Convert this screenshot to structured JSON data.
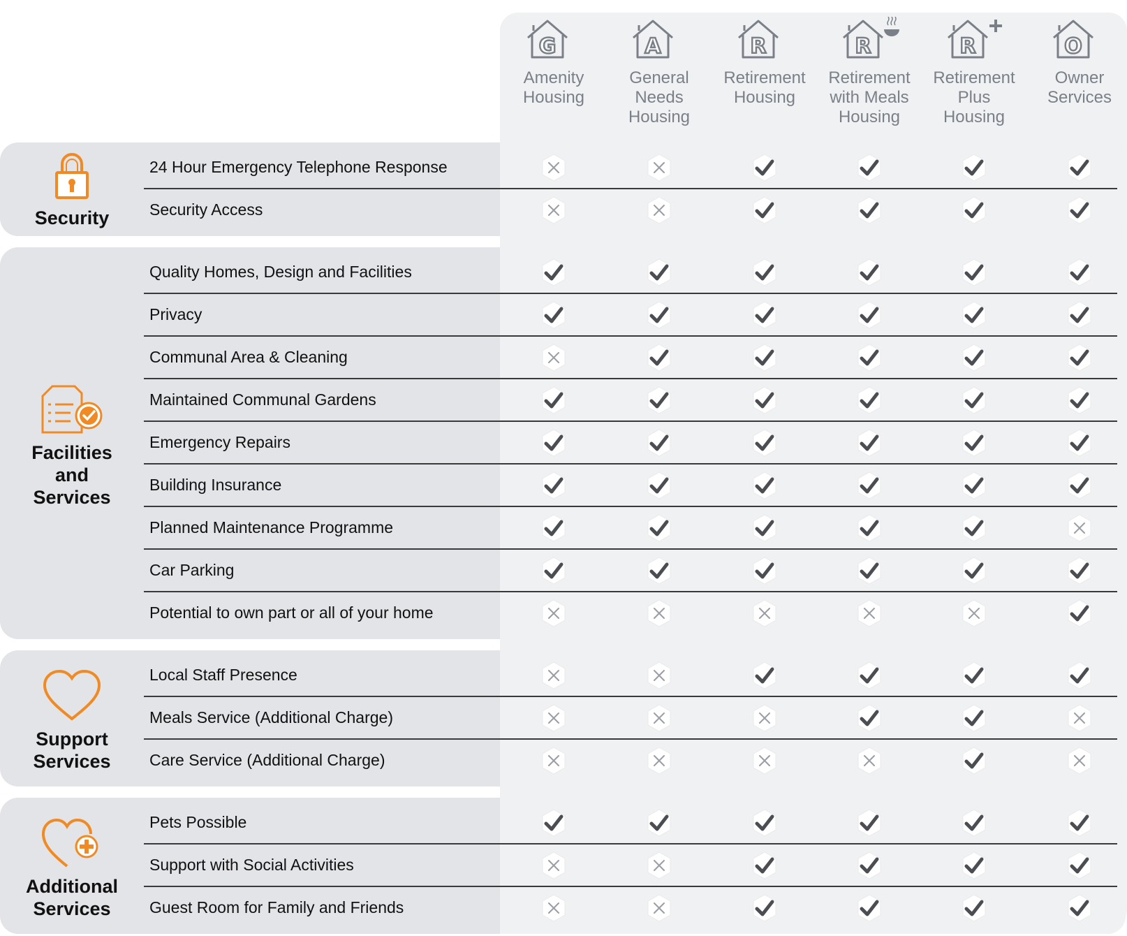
{
  "columns": [
    {
      "letter": "G",
      "label": "Amenity\nHousing",
      "extra": ""
    },
    {
      "letter": "A",
      "label": "General\nNeeds\nHousing",
      "extra": ""
    },
    {
      "letter": "R",
      "label": "Retirement\nHousing",
      "extra": ""
    },
    {
      "letter": "R",
      "label": "Retirement\nwith Meals\nHousing",
      "extra": "meal"
    },
    {
      "letter": "R",
      "label": "Retirement\nPlus\nHousing",
      "extra": "plus"
    },
    {
      "letter": "O",
      "label": "Owner\nServices",
      "extra": ""
    }
  ],
  "groups": [
    {
      "title": "Security",
      "icon": "padlock-icon",
      "rows": [
        {
          "feature": "24 Hour Emergency Telephone Response",
          "marks": [
            "x",
            "x",
            "check",
            "check",
            "check",
            "check"
          ]
        },
        {
          "feature": "Security Access",
          "marks": [
            "x",
            "x",
            "check",
            "check",
            "check",
            "check"
          ]
        }
      ]
    },
    {
      "title": "Facilities\nand\nServices",
      "icon": "document-check-icon",
      "rows": [
        {
          "feature": "Quality Homes, Design and Facilities",
          "marks": [
            "check",
            "check",
            "check",
            "check",
            "check",
            "check"
          ]
        },
        {
          "feature": "Privacy",
          "marks": [
            "check",
            "check",
            "check",
            "check",
            "check",
            "check"
          ]
        },
        {
          "feature": "Communal Area & Cleaning",
          "marks": [
            "x",
            "check",
            "check",
            "check",
            "check",
            "check"
          ]
        },
        {
          "feature": "Maintained Communal Gardens",
          "marks": [
            "check",
            "check",
            "check",
            "check",
            "check",
            "check"
          ]
        },
        {
          "feature": "Emergency Repairs",
          "marks": [
            "check",
            "check",
            "check",
            "check",
            "check",
            "check"
          ]
        },
        {
          "feature": "Building Insurance",
          "marks": [
            "check",
            "check",
            "check",
            "check",
            "check",
            "check"
          ]
        },
        {
          "feature": "Planned Maintenance Programme",
          "marks": [
            "check",
            "check",
            "check",
            "check",
            "check",
            "x"
          ]
        },
        {
          "feature": "Car Parking",
          "marks": [
            "check",
            "check",
            "check",
            "check",
            "check",
            "check"
          ]
        },
        {
          "feature": "Potential to own part or all of your home",
          "marks": [
            "x",
            "x",
            "x",
            "x",
            "x",
            "check"
          ]
        }
      ]
    },
    {
      "title": "Support\nServices",
      "icon": "heart-icon",
      "rows": [
        {
          "feature": "Local Staff Presence",
          "marks": [
            "x",
            "x",
            "check",
            "check",
            "check",
            "check"
          ]
        },
        {
          "feature": "Meals Service (Additional Charge)",
          "marks": [
            "x",
            "x",
            "x",
            "check",
            "check",
            "x"
          ]
        },
        {
          "feature": "Care Service (Additional Charge)",
          "marks": [
            "x",
            "x",
            "x",
            "x",
            "check",
            "x"
          ]
        }
      ]
    },
    {
      "title": "Additional\nServices",
      "icon": "heart-plus-icon",
      "rows": [
        {
          "feature": "Pets Possible",
          "marks": [
            "check",
            "check",
            "check",
            "check",
            "check",
            "check"
          ]
        },
        {
          "feature": "Support with Social Activities",
          "marks": [
            "x",
            "x",
            "check",
            "check",
            "check",
            "check"
          ]
        },
        {
          "feature": "Guest Room for Family and Friends",
          "marks": [
            "x",
            "x",
            "check",
            "check",
            "check",
            "check"
          ]
        }
      ]
    }
  ],
  "colors": {
    "accent": "#f08a24",
    "header_text": "#7b8088",
    "check": "#4a4d52",
    "x": "#9a9ea5"
  }
}
